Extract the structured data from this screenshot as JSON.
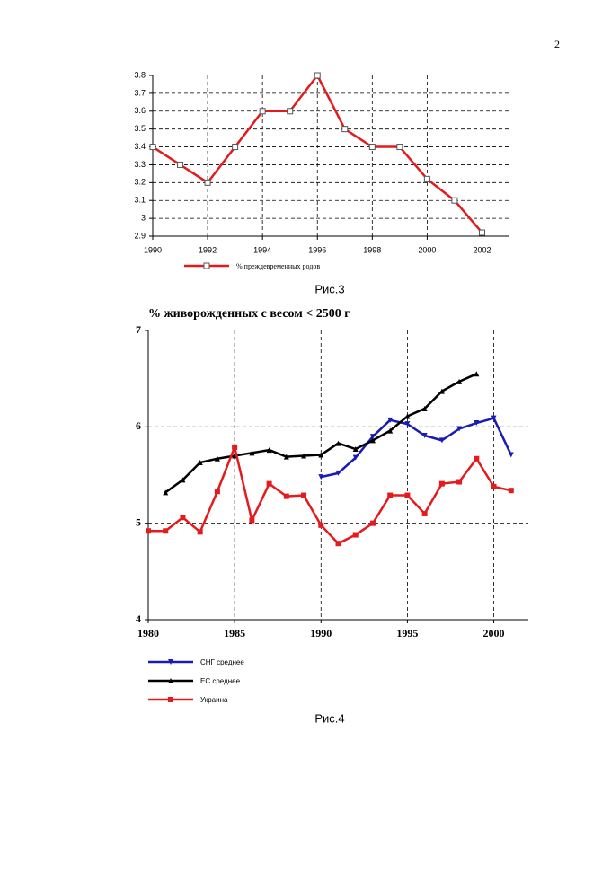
{
  "page_number": "2",
  "captions": [
    "Рис.3",
    "Рис.4"
  ],
  "chart_data": [
    {
      "type": "line",
      "legend": "bottom",
      "x": [
        1990,
        1991,
        1992,
        1993,
        1994,
        1995,
        1996,
        1997,
        1998,
        1999,
        2000,
        2001,
        2002
      ],
      "series": [
        {
          "name": "% преждевременных родов",
          "color": "#e41a1c",
          "marker": "square-open",
          "values": [
            3.4,
            3.3,
            3.2,
            3.4,
            3.6,
            3.6,
            3.8,
            3.5,
            3.4,
            3.4,
            3.22,
            3.1,
            2.92
          ]
        }
      ],
      "xlim": [
        1990,
        2003
      ],
      "xticks": [
        1990,
        1992,
        1994,
        1996,
        1998,
        2000,
        2002
      ],
      "ylim": [
        2.9,
        3.8
      ],
      "yticks": [
        2.9,
        3,
        3.1,
        3.2,
        3.3,
        3.4,
        3.5,
        3.6,
        3.7,
        3.8
      ],
      "grid": true
    },
    {
      "type": "line",
      "title": "% живорожденных с весом < 2500 г",
      "legend": "bottom-left",
      "x": [
        1980,
        1981,
        1982,
        1983,
        1984,
        1985,
        1986,
        1987,
        1988,
        1989,
        1990,
        1991,
        1992,
        1993,
        1994,
        1995,
        1996,
        1997,
        1998,
        1999,
        2000,
        2001
      ],
      "series": [
        {
          "name": "СНГ среднее",
          "color": "#1a1ab4",
          "marker": "triangle-down",
          "values": [
            null,
            null,
            null,
            null,
            null,
            null,
            null,
            null,
            null,
            null,
            5.48,
            5.52,
            5.68,
            5.9,
            6.07,
            6.03,
            5.91,
            5.86,
            5.98,
            6.04,
            6.09,
            5.71
          ]
        },
        {
          "name": "ЕС среднее",
          "color": "#000000",
          "marker": "triangle-up",
          "values": [
            null,
            5.32,
            5.45,
            5.63,
            5.67,
            5.7,
            5.73,
            5.76,
            5.69,
            5.7,
            5.71,
            5.83,
            5.77,
            5.86,
            5.96,
            6.11,
            6.19,
            6.37,
            6.47,
            6.55,
            null,
            null
          ]
        },
        {
          "name": "Украина",
          "color": "#e41a1c",
          "marker": "square",
          "values": [
            4.92,
            4.92,
            5.06,
            4.91,
            5.33,
            5.79,
            5.03,
            5.41,
            5.28,
            5.29,
            4.98,
            4.79,
            4.88,
            5.0,
            5.29,
            5.29,
            5.1,
            5.41,
            5.43,
            5.67,
            5.38,
            5.34
          ]
        }
      ],
      "xlim": [
        1980,
        2002
      ],
      "xticks": [
        1980,
        1985,
        1990,
        1995,
        2000
      ],
      "ylim": [
        4,
        7
      ],
      "yticks": [
        4,
        5,
        6,
        7
      ],
      "grid": true
    }
  ]
}
